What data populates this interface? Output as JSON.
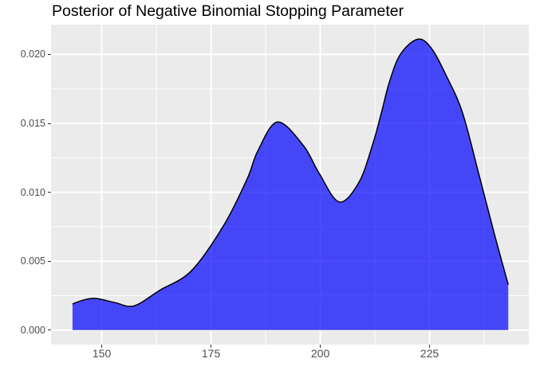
{
  "title": "Posterior of Negative Binomial Stopping Parameter",
  "colors": {
    "background": "#ffffff",
    "panel_background": "#EBEBEB",
    "grid_major": "#FFFFFF",
    "grid_minor": "#FFFFFF",
    "density_fill": "rgba(0,0,255,0.7)",
    "density_stroke": "#000000",
    "tick_label": "#4D4D4D",
    "tick_mark": "#333333",
    "title_color": "#000000"
  },
  "chart_data": {
    "type": "area",
    "subtype": "density",
    "title": "Posterior of Negative Binomial Stopping Parameter",
    "xlabel": "",
    "ylabel": "",
    "legend": false,
    "grid": true,
    "xlim": [
      138.4,
      247.7
    ],
    "ylim": [
      -0.00105,
      0.02216
    ],
    "x_ticks": {
      "values": [
        150,
        175,
        200,
        225
      ],
      "labels": [
        "150",
        "175",
        "200",
        "225"
      ]
    },
    "y_ticks": {
      "values": [
        0,
        0.005,
        0.01,
        0.015,
        0.02
      ],
      "labels": [
        "0.000",
        "0.005",
        "0.010",
        "0.015",
        "0.020"
      ]
    },
    "x_minor_breaks": [
      162.5,
      187.5,
      212.5,
      237.5
    ],
    "y_minor_breaks": [
      0.0025,
      0.0075,
      0.0125,
      0.0175
    ],
    "baseline": 0,
    "series": [
      {
        "name": "posterior-density",
        "points": [
          [
            143.3,
            0.0019
          ],
          [
            146.0,
            0.0022
          ],
          [
            148.7,
            0.0023
          ],
          [
            153.0,
            0.002
          ],
          [
            157.4,
            0.00176
          ],
          [
            163.3,
            0.0029
          ],
          [
            170.5,
            0.0043
          ],
          [
            177.9,
            0.0076
          ],
          [
            183.3,
            0.011
          ],
          [
            185.7,
            0.013
          ],
          [
            190.2,
            0.0151
          ],
          [
            196.1,
            0.0134
          ],
          [
            199.7,
            0.0114
          ],
          [
            204.3,
            0.0093
          ],
          [
            208.8,
            0.0107
          ],
          [
            211.9,
            0.0134
          ],
          [
            214.0,
            0.0158
          ],
          [
            215.8,
            0.018
          ],
          [
            218.3,
            0.02
          ],
          [
            222.2,
            0.0211
          ],
          [
            225.3,
            0.0205
          ],
          [
            228.9,
            0.0184
          ],
          [
            232.5,
            0.0158
          ],
          [
            236.2,
            0.0114
          ],
          [
            239.8,
            0.007
          ],
          [
            243.0,
            0.0033
          ]
        ]
      }
    ]
  }
}
